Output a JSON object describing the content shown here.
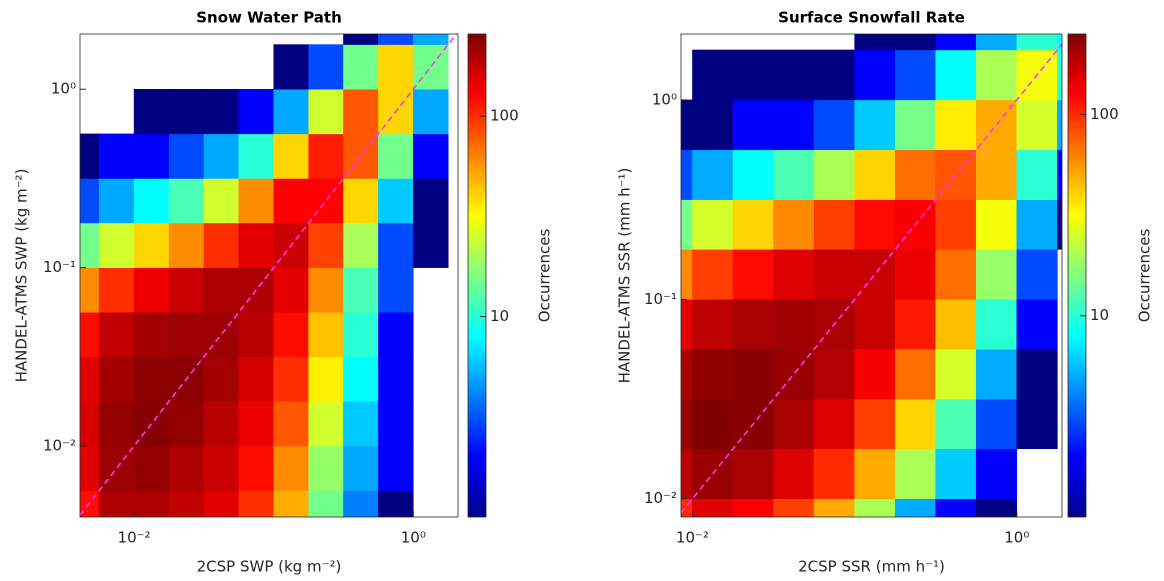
{
  "chart_data": [
    {
      "type": "heatmap",
      "title": "Snow Water Path",
      "xlabel": "2CSP SWP (kg m⁻²)",
      "ylabel": "HANDEL-ATMS SWP (kg m⁻²)",
      "colorbar_label": "Occurrences",
      "log_x": true,
      "log_y": true,
      "log_color": true,
      "colormap": "jet",
      "diagonal": true,
      "xlim": [
        0.0041,
        2.09
      ],
      "ylim": [
        0.004,
        2.04
      ],
      "clim": [
        1,
        257
      ],
      "xticks": [
        {
          "value": 0.01,
          "label": "10⁻²"
        },
        {
          "value": 1,
          "label": "10⁰"
        }
      ],
      "yticks": [
        {
          "value": 0.01,
          "label": "10⁻²"
        },
        {
          "value": 0.1,
          "label": "10⁻¹"
        },
        {
          "value": 1,
          "label": "10⁰"
        }
      ],
      "cticks": [
        10,
        100
      ],
      "xbins": [
        0.00316,
        0.00562,
        0.01,
        0.0178,
        0.0316,
        0.0562,
        0.1,
        0.178,
        0.316,
        0.562,
        1,
        1.78,
        3.16
      ],
      "ybins": [
        0.00316,
        0.00562,
        0.01,
        0.0178,
        0.0316,
        0.0562,
        0.1,
        0.178,
        0.316,
        0.562,
        1,
        1.78,
        3.16
      ],
      "values": [
        [
          120,
          200,
          200,
          180,
          150,
          100,
          50,
          15,
          4,
          1,
          null,
          null
        ],
        [
          150,
          220,
          230,
          200,
          170,
          120,
          60,
          18,
          5,
          2,
          null,
          null
        ],
        [
          160,
          230,
          250,
          230,
          190,
          140,
          80,
          25,
          6,
          2,
          null,
          null
        ],
        [
          150,
          210,
          240,
          240,
          210,
          160,
          100,
          35,
          8,
          2,
          null,
          null
        ],
        [
          120,
          180,
          210,
          220,
          220,
          190,
          120,
          45,
          10,
          2,
          null,
          null
        ],
        [
          60,
          100,
          140,
          170,
          200,
          200,
          150,
          60,
          12,
          3,
          null,
          null
        ],
        [
          15,
          25,
          40,
          60,
          100,
          150,
          170,
          90,
          20,
          3,
          1,
          null
        ],
        [
          3,
          5,
          8,
          12,
          25,
          60,
          130,
          130,
          40,
          6,
          1,
          null
        ],
        [
          1,
          2,
          2,
          3,
          5,
          10,
          40,
          110,
          80,
          15,
          2,
          null
        ],
        [
          null,
          null,
          1,
          1,
          1,
          2,
          5,
          25,
          80,
          40,
          5,
          null
        ],
        [
          null,
          null,
          null,
          null,
          null,
          null,
          1,
          3,
          15,
          40,
          15,
          null
        ],
        [
          null,
          null,
          null,
          null,
          null,
          null,
          null,
          null,
          1,
          3,
          5,
          null
        ]
      ]
    },
    {
      "type": "heatmap",
      "title": "Surface Snowfall Rate",
      "xlabel": "2CSP SSR (mm h⁻¹)",
      "ylabel": "HANDEL-ATMS SSR (mm h⁻¹)",
      "colorbar_label": "Occurrences",
      "log_x": true,
      "log_y": true,
      "log_color": true,
      "colormap": "jet",
      "diagonal": true,
      "xlim": [
        0.0085,
        1.9
      ],
      "ylim": [
        0.0081,
        2.14
      ],
      "clim": [
        1,
        251
      ],
      "xticks": [
        {
          "value": 0.01,
          "label": "10⁻²"
        },
        {
          "value": 1,
          "label": "10⁰"
        }
      ],
      "yticks": [
        {
          "value": 0.01,
          "label": "10⁻²"
        },
        {
          "value": 0.1,
          "label": "10⁻¹"
        },
        {
          "value": 1,
          "label": "10⁰"
        }
      ],
      "cticks": [
        10,
        100
      ],
      "xbins": [
        0.00562,
        0.01,
        0.0178,
        0.0316,
        0.0562,
        0.1,
        0.178,
        0.316,
        0.562,
        1,
        1.78,
        3.16
      ],
      "ybins": [
        0.00562,
        0.01,
        0.0178,
        0.0316,
        0.0562,
        0.1,
        0.178,
        0.316,
        0.562,
        1,
        1.78,
        3.16
      ],
      "values": [
        [
          100,
          150,
          130,
          90,
          50,
          20,
          5,
          2,
          1,
          null,
          null
        ],
        [
          180,
          220,
          200,
          150,
          100,
          50,
          20,
          6,
          2,
          null,
          null
        ],
        [
          220,
          250,
          240,
          200,
          150,
          90,
          40,
          12,
          3,
          1,
          null
        ],
        [
          200,
          230,
          240,
          220,
          190,
          130,
          70,
          25,
          5,
          1,
          null
        ],
        [
          140,
          180,
          200,
          210,
          200,
          170,
          110,
          45,
          10,
          2,
          null
        ],
        [
          60,
          90,
          120,
          150,
          170,
          170,
          140,
          70,
          18,
          3,
          null
        ],
        [
          15,
          25,
          40,
          60,
          90,
          120,
          130,
          90,
          30,
          5,
          1
        ],
        [
          3,
          5,
          8,
          12,
          20,
          40,
          70,
          80,
          50,
          10,
          2
        ],
        [
          1,
          1,
          2,
          2,
          3,
          6,
          15,
          35,
          50,
          25,
          5
        ],
        [
          null,
          1,
          1,
          1,
          1,
          2,
          3,
          8,
          20,
          30,
          10
        ],
        [
          null,
          null,
          null,
          null,
          null,
          1,
          1,
          2,
          5,
          10,
          8
        ]
      ]
    }
  ]
}
